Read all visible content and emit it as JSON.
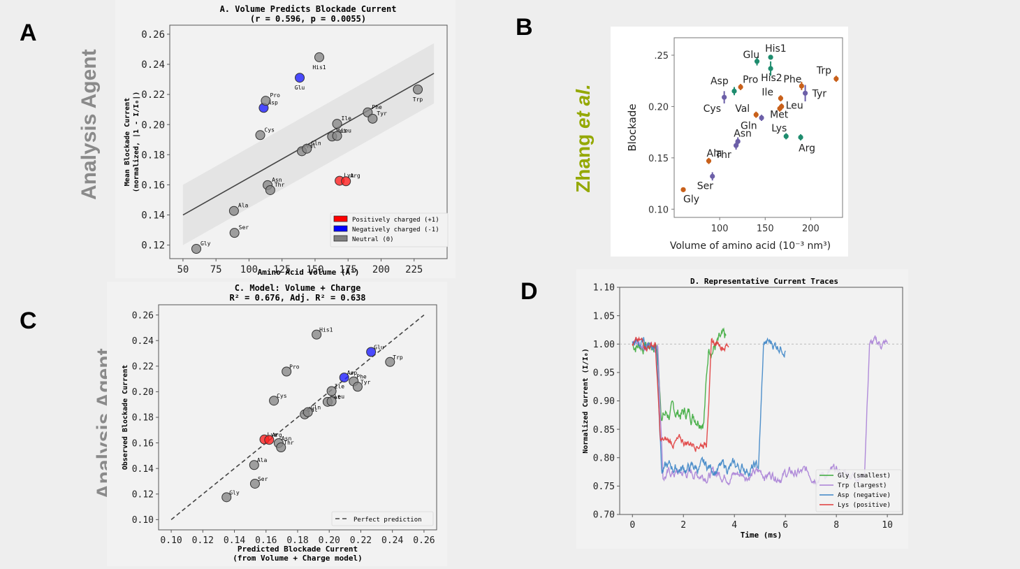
{
  "panels": {
    "A": {
      "letter": "A",
      "side_label": "Analysis Agent"
    },
    "B": {
      "letter": "B",
      "side_label_main": "Zhang ",
      "side_label_italic": "et al."
    },
    "C": {
      "letter": "C",
      "side_label": "Analysis Agent"
    },
    "D": {
      "letter": "D"
    }
  },
  "chart_data": [
    {
      "id": "A",
      "type": "scatter",
      "title": "A. Volume Predicts Blockade Current",
      "subtitle": "(r = 0.596, p = 0.0055)",
      "xlabel": "Amino Acid Volume (Å³)",
      "ylabel": [
        "Mean Blockade Current",
        "(normalized, |1 - I/I₀|)"
      ],
      "xlim": [
        40,
        250
      ],
      "ylim": [
        0.111,
        0.266
      ],
      "xticks": [
        50,
        75,
        100,
        125,
        150,
        175,
        200,
        225
      ],
      "yticks": [
        0.12,
        0.14,
        0.16,
        0.18,
        0.2,
        0.22,
        0.24,
        0.26
      ],
      "fit_line": {
        "x": [
          50,
          240
        ],
        "y": [
          0.14,
          0.234
        ]
      },
      "confidence_band": {
        "x": [
          50,
          240
        ],
        "upper": [
          0.16,
          0.254
        ],
        "lower": [
          0.12,
          0.214
        ]
      },
      "colors": {
        "positive": "#ff2020",
        "negative": "#1f1fff",
        "neutral": "#888888"
      },
      "legend": {
        "position": "lower-right",
        "entries": [
          {
            "label": "Positively charged (+1)",
            "color": "#ff0000"
          },
          {
            "label": "Negatively charged (-1)",
            "color": "#0000ff"
          },
          {
            "label": "Neutral (0)",
            "color": "#808080"
          }
        ]
      },
      "points": [
        {
          "name": "Gly",
          "x": 60.1,
          "y": 0.1175,
          "charge": "neutral"
        },
        {
          "name": "Ala",
          "x": 88.6,
          "y": 0.1427,
          "charge": "neutral"
        },
        {
          "name": "Ser",
          "x": 89.0,
          "y": 0.1281,
          "charge": "neutral"
        },
        {
          "name": "Cys",
          "x": 108.5,
          "y": 0.193,
          "charge": "neutral"
        },
        {
          "name": "Asp",
          "x": 111.1,
          "y": 0.2111,
          "charge": "negative"
        },
        {
          "name": "Pro",
          "x": 112.7,
          "y": 0.2158,
          "charge": "neutral"
        },
        {
          "name": "Asn",
          "x": 114.1,
          "y": 0.1598,
          "charge": "neutral"
        },
        {
          "name": "Thr",
          "x": 116.1,
          "y": 0.1565,
          "charge": "neutral"
        },
        {
          "name": "Glu",
          "x": 138.4,
          "y": 0.2311,
          "charge": "negative"
        },
        {
          "name": "Val",
          "x": 140.0,
          "y": 0.1823,
          "charge": "neutral"
        },
        {
          "name": "Gln",
          "x": 143.8,
          "y": 0.184,
          "charge": "neutral"
        },
        {
          "name": "His1",
          "x": 153.2,
          "y": 0.2447,
          "charge": "neutral"
        },
        {
          "name": "Met",
          "x": 162.9,
          "y": 0.1921,
          "charge": "neutral"
        },
        {
          "name": "Ile",
          "x": 166.7,
          "y": 0.2005,
          "charge": "neutral"
        },
        {
          "name": "Leu",
          "x": 166.7,
          "y": 0.1925,
          "charge": "neutral"
        },
        {
          "name": "Lys",
          "x": 168.6,
          "y": 0.1627,
          "charge": "positive"
        },
        {
          "name": "Arg",
          "x": 173.4,
          "y": 0.1624,
          "charge": "positive"
        },
        {
          "name": "Phe",
          "x": 189.9,
          "y": 0.2081,
          "charge": "neutral"
        },
        {
          "name": "Tyr",
          "x": 193.6,
          "y": 0.2039,
          "charge": "neutral"
        },
        {
          "name": "Trp",
          "x": 227.8,
          "y": 0.2233,
          "charge": "neutral"
        }
      ]
    },
    {
      "id": "B",
      "type": "scatter",
      "title": "",
      "xlabel": "Volume of amino acid (10⁻³ nm³)",
      "ylabel": "Blockade",
      "xlim": [
        50,
        235
      ],
      "ylim": [
        0.092,
        0.267
      ],
      "xticks": [
        100,
        150,
        200
      ],
      "yticks": [
        0.1,
        0.15,
        0.2,
        0.25
      ],
      "ytick_labels": [
        "0.10",
        "0.15",
        "0.20",
        ".25"
      ],
      "colors": {
        "orange": "#c8601a",
        "green": "#1e8c6e",
        "purple": "#6c5fa8"
      },
      "points": [
        {
          "name": "Gly",
          "x": 60,
          "y": 0.119,
          "err": 0.002,
          "group": "orange"
        },
        {
          "name": "Ala",
          "x": 88,
          "y": 0.147,
          "err": 0.003,
          "group": "orange"
        },
        {
          "name": "Ser",
          "x": 92,
          "y": 0.132,
          "err": 0.004,
          "group": "purple"
        },
        {
          "name": "Cys",
          "x": 105,
          "y": 0.209,
          "err": 0.006,
          "group": "purple"
        },
        {
          "name": "Asp",
          "x": 116,
          "y": 0.215,
          "err": 0.004,
          "group": "green"
        },
        {
          "name": "Pro",
          "x": 123,
          "y": 0.219,
          "err": 0.003,
          "group": "orange"
        },
        {
          "name": "Thr",
          "x": 118,
          "y": 0.162,
          "err": 0.004,
          "group": "purple"
        },
        {
          "name": "Asn",
          "x": 120,
          "y": 0.166,
          "err": 0.004,
          "group": "purple"
        },
        {
          "name": "Glu",
          "x": 141,
          "y": 0.244,
          "err": 0.004,
          "group": "green"
        },
        {
          "name": "Val",
          "x": 140,
          "y": 0.192,
          "err": 0.003,
          "group": "orange"
        },
        {
          "name": "Gln",
          "x": 146,
          "y": 0.189,
          "err": 0.003,
          "group": "purple"
        },
        {
          "name": "His1",
          "x": 156,
          "y": 0.248,
          "err": 0.002,
          "group": "green"
        },
        {
          "name": "His2",
          "x": 156,
          "y": 0.237,
          "err": 0.007,
          "group": "green"
        },
        {
          "name": "Ile",
          "x": 167,
          "y": 0.208,
          "err": 0.003,
          "group": "orange"
        },
        {
          "name": "Leu",
          "x": 168,
          "y": 0.2,
          "err": 0.003,
          "group": "orange"
        },
        {
          "name": "Met",
          "x": 166,
          "y": 0.198,
          "err": 0.003,
          "group": "orange"
        },
        {
          "name": "Lys",
          "x": 173,
          "y": 0.171,
          "err": 0.003,
          "group": "green"
        },
        {
          "name": "Arg",
          "x": 189,
          "y": 0.17,
          "err": 0.003,
          "group": "green"
        },
        {
          "name": "Phe",
          "x": 190,
          "y": 0.22,
          "err": 0.004,
          "group": "orange"
        },
        {
          "name": "Tyr",
          "x": 194,
          "y": 0.213,
          "err": 0.008,
          "group": "purple"
        },
        {
          "name": "Trp",
          "x": 228,
          "y": 0.227,
          "err": 0.003,
          "group": "orange"
        }
      ]
    },
    {
      "id": "C",
      "type": "scatter",
      "title": "C. Model: Volume + Charge",
      "subtitle": "R² = 0.676, Adj. R² = 0.638",
      "xlabel": [
        "Predicted Blockade Current",
        "(from Volume + Charge model)"
      ],
      "ylabel": "Observed Blockade Current",
      "xlim": [
        0.092,
        0.268
      ],
      "ylim": [
        0.092,
        0.268
      ],
      "xticks": [
        0.1,
        0.12,
        0.14,
        0.16,
        0.18,
        0.2,
        0.22,
        0.24,
        0.26
      ],
      "yticks": [
        0.1,
        0.12,
        0.14,
        0.16,
        0.18,
        0.2,
        0.22,
        0.24,
        0.26
      ],
      "reference_line": {
        "x": [
          0.1,
          0.26
        ],
        "y": [
          0.1,
          0.26
        ],
        "style": "dashed",
        "label": "Perfect prediction"
      },
      "legend": {
        "position": "lower-right",
        "entries": [
          {
            "label": "Perfect prediction",
            "style": "dashed",
            "color": "#444444"
          }
        ]
      },
      "colors": {
        "positive": "#ff2020",
        "negative": "#1f1fff",
        "neutral": "#888888"
      },
      "points": [
        {
          "name": "Gly",
          "x": 0.135,
          "y": 0.1175,
          "charge": "neutral"
        },
        {
          "name": "Ala",
          "x": 0.1525,
          "y": 0.1427,
          "charge": "neutral"
        },
        {
          "name": "Ser",
          "x": 0.153,
          "y": 0.1281,
          "charge": "neutral"
        },
        {
          "name": "Lys",
          "x": 0.159,
          "y": 0.1627,
          "charge": "positive"
        },
        {
          "name": "Arg",
          "x": 0.162,
          "y": 0.1624,
          "charge": "positive"
        },
        {
          "name": "Cys",
          "x": 0.165,
          "y": 0.193,
          "charge": "neutral"
        },
        {
          "name": "Asn",
          "x": 0.168,
          "y": 0.1598,
          "charge": "neutral"
        },
        {
          "name": "Thr",
          "x": 0.1695,
          "y": 0.1565,
          "charge": "neutral"
        },
        {
          "name": "Pro",
          "x": 0.173,
          "y": 0.2158,
          "charge": "neutral"
        },
        {
          "name": "Val",
          "x": 0.1845,
          "y": 0.1823,
          "charge": "neutral"
        },
        {
          "name": "Gln",
          "x": 0.1865,
          "y": 0.184,
          "charge": "neutral"
        },
        {
          "name": "His1",
          "x": 0.192,
          "y": 0.2447,
          "charge": "neutral"
        },
        {
          "name": "Met",
          "x": 0.199,
          "y": 0.1921,
          "charge": "neutral"
        },
        {
          "name": "Leu",
          "x": 0.2015,
          "y": 0.1925,
          "charge": "neutral"
        },
        {
          "name": "Ile",
          "x": 0.2015,
          "y": 0.2005,
          "charge": "neutral"
        },
        {
          "name": "Asp",
          "x": 0.2095,
          "y": 0.2111,
          "charge": "negative"
        },
        {
          "name": "Phe",
          "x": 0.2155,
          "y": 0.2081,
          "charge": "neutral"
        },
        {
          "name": "Tyr",
          "x": 0.218,
          "y": 0.2039,
          "charge": "neutral"
        },
        {
          "name": "Glu",
          "x": 0.2265,
          "y": 0.2311,
          "charge": "negative"
        },
        {
          "name": "Trp",
          "x": 0.2385,
          "y": 0.2233,
          "charge": "neutral"
        }
      ]
    },
    {
      "id": "D",
      "type": "line",
      "title": "D. Representative Current Traces",
      "xlabel": "Time (ms)",
      "ylabel": "Normalized Current (I/I₀)",
      "xlim": [
        -0.5,
        10.6
      ],
      "ylim": [
        0.7,
        1.1
      ],
      "xticks": [
        0,
        2,
        4,
        6,
        8,
        10
      ],
      "yticks": [
        0.7,
        0.75,
        0.8,
        0.85,
        0.9,
        0.95,
        1.0,
        1.05,
        1.1
      ],
      "baseline": {
        "y": 1.0,
        "style": "dashed",
        "color": "#bbbbbb"
      },
      "legend": {
        "position": "lower-right"
      },
      "series": [
        {
          "name": "Gly (smallest)",
          "color": "#3aaa3a",
          "t_start": 0,
          "t_enter": 0.95,
          "t_exit": 2.8,
          "t_end": 3.7,
          "open_level": 1.0,
          "blocked_level": 0.878,
          "noise": 0.012
        },
        {
          "name": "Trp (largest)",
          "color": "#a97fd6",
          "t_start": 0,
          "t_enter": 1.0,
          "t_exit": 9.1,
          "t_end": 10.0,
          "open_level": 1.0,
          "blocked_level": 0.772,
          "noise": 0.008
        },
        {
          "name": "Asp (negative)",
          "color": "#3d85c6",
          "t_start": 0,
          "t_enter": 0.95,
          "t_exit": 4.95,
          "t_end": 6.0,
          "open_level": 1.0,
          "blocked_level": 0.782,
          "noise": 0.009
        },
        {
          "name": "Lys (positive)",
          "color": "#e03a3a",
          "t_start": 0,
          "t_enter": 0.9,
          "t_exit": 2.9,
          "t_end": 3.8,
          "open_level": 1.0,
          "blocked_level": 0.827,
          "noise": 0.007
        }
      ]
    }
  ]
}
